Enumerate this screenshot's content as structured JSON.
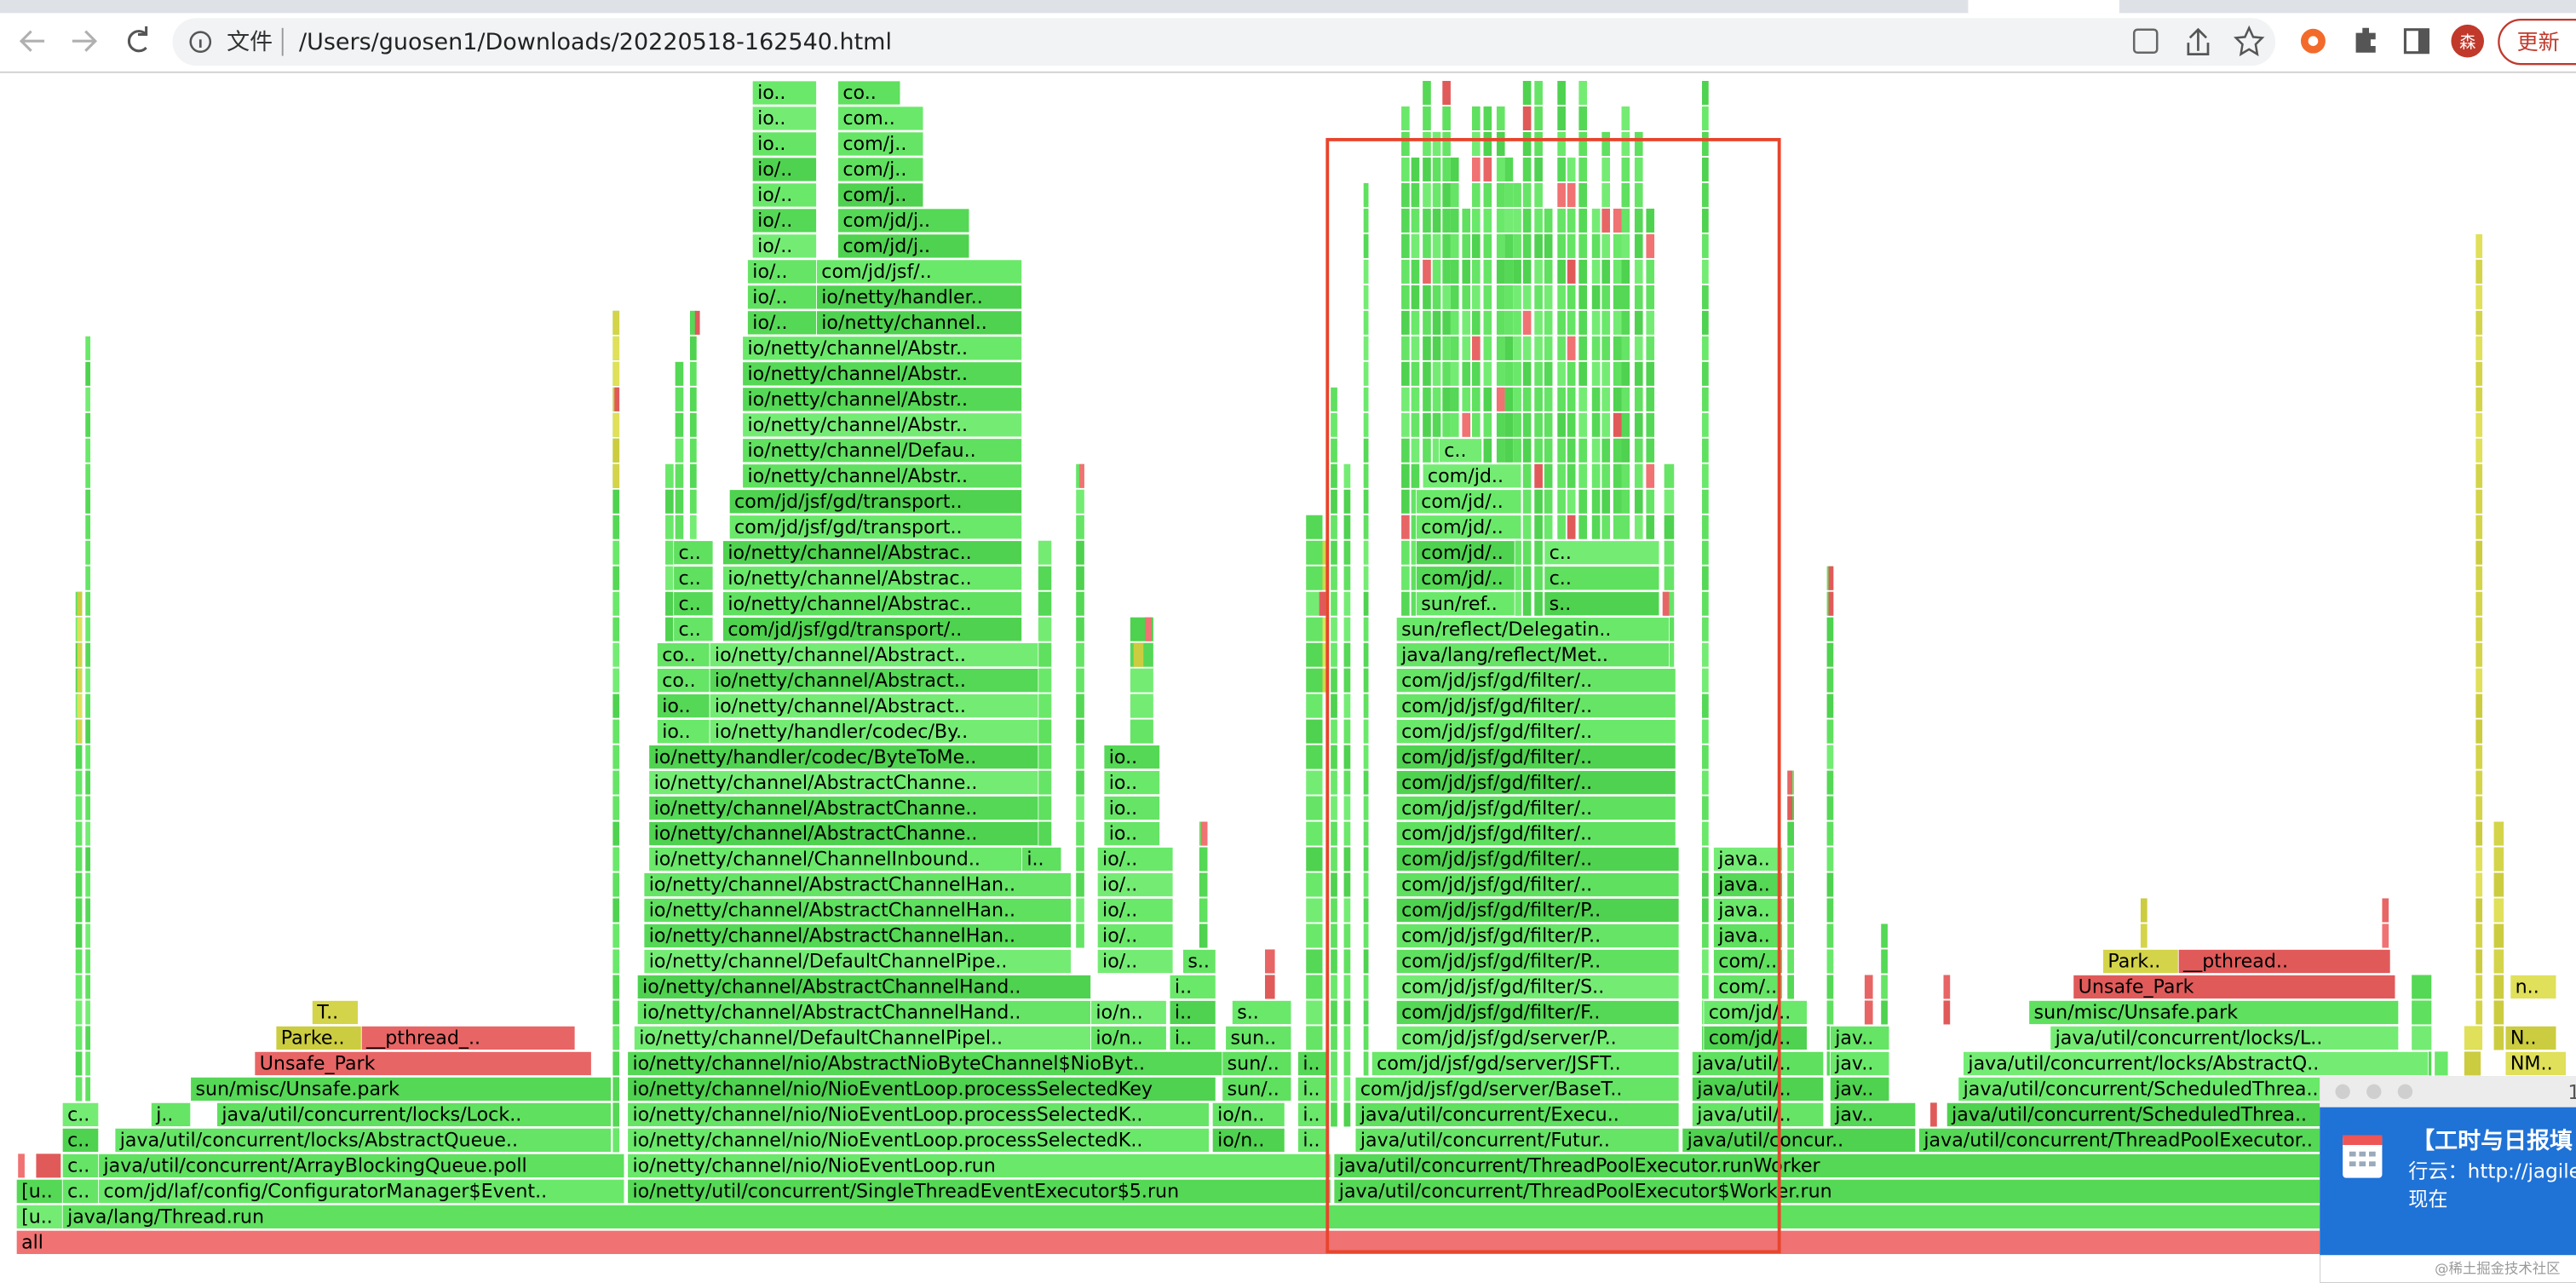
{
  "browser": {
    "address_prefix": "文件",
    "url": "/Users/guosen1/Downloads/20220518-162540.html",
    "avatar": "森",
    "update_button": "更新"
  },
  "flame_graph": {
    "rows": [
      [
        "all"
      ],
      [
        "[u..",
        "java/lang/Thread.run"
      ],
      [
        "[u..",
        "c..",
        "com/jd/laf/config/ConfiguratorManager$Event..",
        "io/netty/util/concurrent/SingleThreadEventExecutor$5.run",
        "java/util/concurrent/ThreadPoolExecutor$Worker.run"
      ],
      [
        "c..",
        "java/util/concurrent/ArrayBlockingQueue.poll",
        "io/netty/channel/nio/NioEventLoop.run",
        "java/util/concurrent/ThreadPoolExecutor.runWorker"
      ],
      [
        "c..",
        "java/util/concurrent/locks/AbstractQueue..",
        "io/netty/channel/nio/NioEventLoop.processSelectedK..",
        "io/n..",
        "i..",
        "java/util/concurrent/Futur..",
        "java/util/concur..",
        "java/util/concurrent/ThreadPoolExecutor.."
      ],
      [
        "c..",
        "j..",
        "java/util/concurrent/locks/Lock..",
        "io/netty/channel/nio/NioEventLoop.processSelectedK..",
        "io/n..",
        "i..",
        "java/util/concurrent/Execu..",
        "java/util/..",
        "jav..",
        "java/util/concurrent/ScheduledThrea.."
      ],
      [
        "sun/misc/Unsafe.park",
        "io/netty/channel/nio/NioEventLoop.processSelectedKey",
        "sun/..",
        "i..",
        "com/jd/jsf/gd/server/BaseT..",
        "java/util/..",
        "jav..",
        "java/util/concurrent/ScheduledThrea.."
      ],
      [
        "Unsafe_Park",
        "io/netty/channel/nio/AbstractNioByteChannel$NioByt..",
        "sun/..",
        "i..",
        "com/jd/jsf/gd/server/JSFT..",
        "java/util/..",
        "jav..",
        "java/util/concurrent/locks/AbstractQ..",
        "NM.."
      ],
      [
        "Parke..",
        "__pthread_..",
        "io/netty/channel/DefaultChannelPipel..",
        "io/n..",
        "i..",
        "sun..",
        "com/jd/jsf/gd/server/P..",
        "com/jd/..",
        "jav..",
        "java/util/concurrent/locks/L..",
        "N.."
      ],
      [
        "T..",
        "io/netty/channel/AbstractChannelHand..",
        "io/n..",
        "i..",
        "s..",
        "com/jd/jsf/gd/filter/F..",
        "com/jd/..",
        "sun/misc/Unsafe.park"
      ],
      [
        "io/netty/channel/AbstractChannelHand..",
        "i..",
        "com/jd/jsf/gd/filter/S..",
        "com/..",
        "Unsafe_Park",
        "n.."
      ],
      [
        "io/netty/channel/DefaultChannelPipe..",
        "io/..",
        "s..",
        "com/jd/jsf/gd/filter/P..",
        "com/..",
        "Park..",
        "__pthread.."
      ],
      [
        "io/netty/channel/AbstractChannelHan..",
        "io/..",
        "com/jd/jsf/gd/filter/P..",
        "java.."
      ],
      [
        "io/netty/channel/AbstractChannelHan..",
        "io/..",
        "com/jd/jsf/gd/filter/P..",
        "java.."
      ],
      [
        "io/netty/channel/AbstractChannelHan..",
        "io/..",
        "com/jd/jsf/gd/filter/..",
        "java.."
      ],
      [
        "io/netty/channel/ChannelInbound..",
        "i..",
        "io/..",
        "com/jd/jsf/gd/filter/..",
        "java.."
      ],
      [
        "io/netty/channel/AbstractChanne..",
        "io..",
        "com/jd/jsf/gd/filter/.."
      ],
      [
        "io/netty/channel/AbstractChanne..",
        "io..",
        "com/jd/jsf/gd/filter/.."
      ],
      [
        "io/netty/channel/AbstractChanne..",
        "io..",
        "com/jd/jsf/gd/filter/.."
      ],
      [
        "io/netty/handler/codec/ByteToMe..",
        "io..",
        "com/jd/jsf/gd/filter/.."
      ],
      [
        "io..",
        "io/netty/handler/codec/By..",
        "com/jd/jsf/gd/filter/.."
      ],
      [
        "io..",
        "io/netty/channel/Abstract..",
        "com/jd/jsf/gd/filter/.."
      ],
      [
        "co..",
        "io/netty/channel/Abstract..",
        "com/jd/jsf/gd/filter/.."
      ],
      [
        "co..",
        "io/netty/channel/Abstract..",
        "java/lang/reflect/Met.."
      ],
      [
        "c..",
        "com/jd/jsf/gd/transport/..",
        "sun/reflect/Delegatin.."
      ],
      [
        "c..",
        "io/netty/channel/Abstrac..",
        "sun/ref..",
        "s.."
      ],
      [
        "c..",
        "io/netty/channel/Abstrac..",
        "com/jd/..",
        "c.."
      ],
      [
        "c..",
        "io/netty/channel/Abstrac..",
        "com/jd/..",
        "c.."
      ],
      [
        "com/jd/jsf/gd/transport..",
        "com/jd/.."
      ],
      [
        "com/jd/jsf/gd/transport..",
        "com/jd/.."
      ],
      [
        "io/netty/channel/Abstr..",
        "com/jd.."
      ],
      [
        "io/netty/channel/Defau..",
        "c.."
      ],
      [
        "io/netty/channel/Abstr.."
      ],
      [
        "io/netty/channel/Abstr.."
      ],
      [
        "io/netty/channel/Abstr.."
      ],
      [
        "io/netty/channel/Abstr.."
      ],
      [
        "io/..",
        "io/netty/channel.."
      ],
      [
        "io/..",
        "io/netty/handler.."
      ],
      [
        "io/..",
        "com/jd/jsf/.."
      ],
      [
        "io/..",
        "com/jd/j.."
      ],
      [
        "io/..",
        "com/jd/j.."
      ],
      [
        "io/..",
        "com/j.."
      ],
      [
        "io/..",
        "com/j.."
      ],
      [
        "io..",
        "com/j.."
      ],
      [
        "io..",
        "com.."
      ],
      [
        "io..",
        "co.."
      ]
    ]
  },
  "notification": {
    "counter": "1",
    "title": "【工时与日报填",
    "line": "行云：http://jagile.",
    "time": "现在"
  },
  "watermark": "@稀土掘金技术社区"
}
